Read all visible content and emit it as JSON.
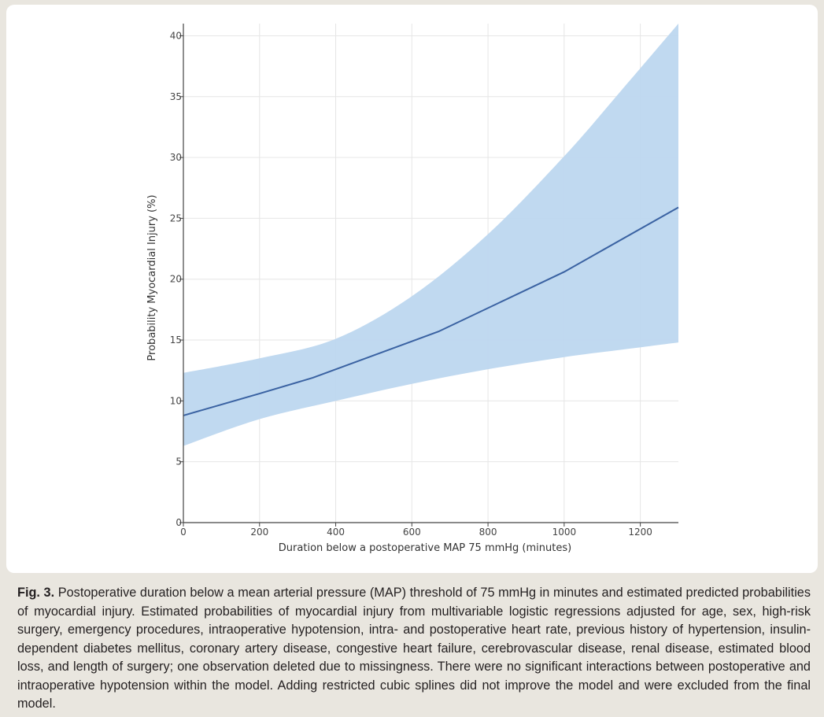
{
  "chart_data": {
    "type": "line",
    "title": "",
    "xlabel": "Duration below a postoperative MAP 75 mmHg (minutes)",
    "ylabel": "Probability Myocardial Injury (%)",
    "xlim": [
      0,
      1300
    ],
    "ylim": [
      0,
      41
    ],
    "x_ticks": [
      0,
      200,
      400,
      600,
      800,
      1000,
      1200
    ],
    "y_ticks": [
      0,
      5,
      10,
      15,
      20,
      25,
      30,
      35,
      40
    ],
    "grid": true,
    "legend": "none",
    "colors": {
      "line": "#3a62a2",
      "band": "#bdd7ef",
      "grid": "#e6e6e6",
      "axis": "#444444"
    },
    "series": [
      {
        "x": [
          0,
          200,
          340,
          670,
          1000,
          1300
        ],
        "y": [
          8.8,
          10.6,
          11.9,
          15.7,
          20.6,
          25.9
        ]
      }
    ],
    "confidence_band": {
      "x": [
        0,
        200,
        400,
        600,
        800,
        1000,
        1150,
        1300
      ],
      "upper": [
        12.3,
        13.5,
        15.1,
        18.6,
        23.7,
        30.1,
        35.5,
        41.0
      ],
      "lower": [
        6.3,
        8.5,
        10.0,
        11.4,
        12.6,
        13.6,
        14.2,
        14.8
      ]
    }
  },
  "caption": {
    "label": "Fig. 3.",
    "text": "Postoperative duration below a mean arterial pressure (MAP) threshold of 75 mmHg in minutes and estimated predicted probabilities of myocardial injury. Estimated probabilities of myocardial injury from multivariable logistic regressions adjusted for age, sex, high-risk surgery, emergency procedures, intraoperative hypotension, intra- and postoperative heart rate, previous history of hypertension, insulin-dependent diabetes mellitus, coronary artery disease, congestive heart failure, cerebrovascular disease, renal disease, estimated blood loss, and length of surgery; one observation deleted due to missingness. There were no significant interactions between postoperative and intraoperative hypotension within the model. Adding restricted cubic splines did not improve the model and were excluded from the final model."
  }
}
